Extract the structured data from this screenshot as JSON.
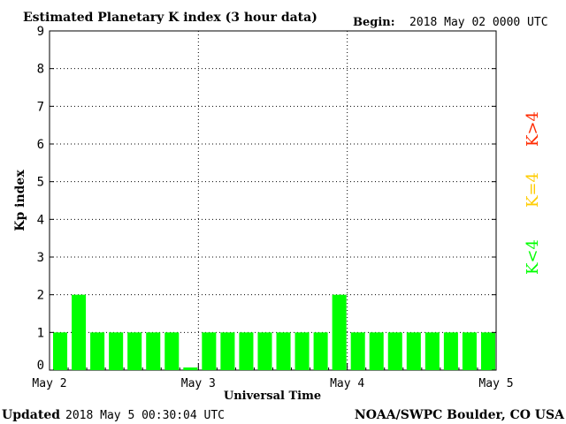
{
  "title": "Estimated Planetary K index (3 hour data)",
  "begin_label": "Begin:",
  "begin_value": "2018 May 02 0000 UTC",
  "footer": {
    "updated_label": "Updated",
    "updated_value": "2018 May  5 00:30:04 UTC",
    "source": "NOAA/SWPC Boulder, CO USA"
  },
  "colors": {
    "quiet": "#00ff00",
    "moderate": "#ffcc00",
    "storm": "#ff2a00"
  },
  "legend": [
    {
      "label": "K<4",
      "color": "#00ff00"
    },
    {
      "label": "K=4",
      "color": "#ffcc00"
    },
    {
      "label": "K>4",
      "color": "#ff2a00"
    }
  ],
  "chart_data": {
    "type": "bar",
    "ylabel": "Kp index",
    "xlabel": "Universal Time",
    "ylim": [
      0,
      9
    ],
    "yticks": [
      0,
      1,
      2,
      3,
      4,
      5,
      6,
      7,
      8,
      9
    ],
    "x_tick_labels": [
      "May 2",
      "May 3",
      "May 4",
      "May 5"
    ],
    "grid": true,
    "bar_interval_hours": 3,
    "values": [
      1,
      2,
      1,
      1,
      1,
      1,
      1,
      0.07,
      1,
      1,
      1,
      1,
      1,
      1,
      1,
      2,
      1,
      1,
      1,
      1,
      1,
      1,
      1,
      1
    ]
  }
}
